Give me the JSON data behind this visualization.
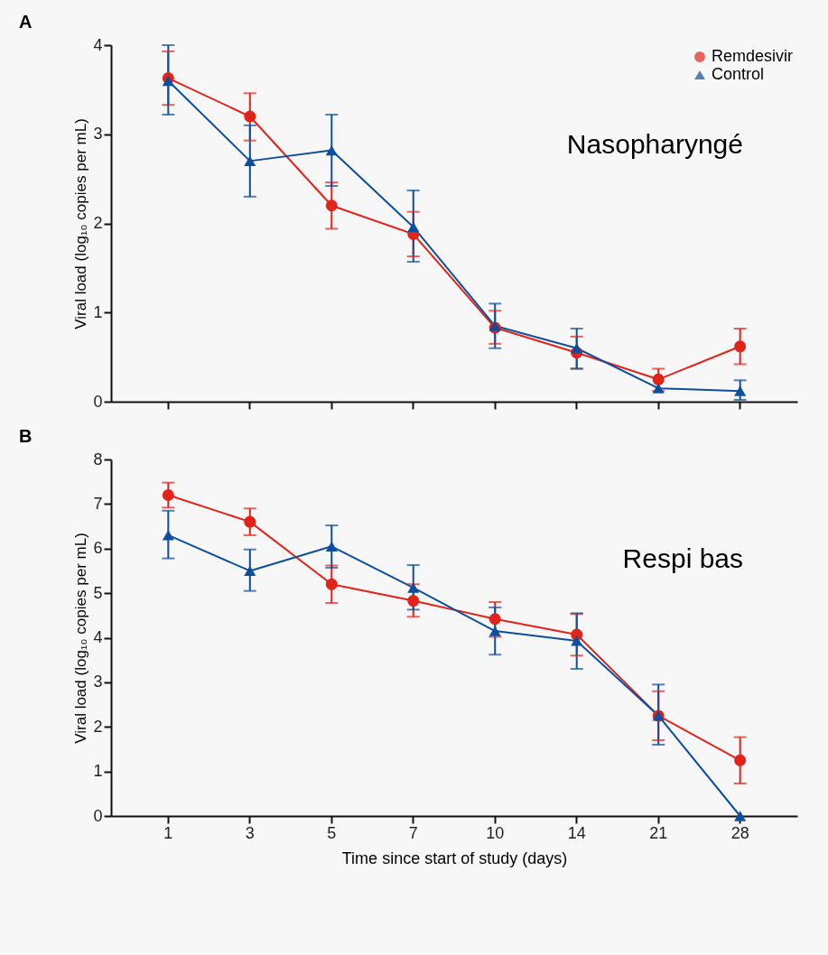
{
  "chart_data": [
    {
      "type": "line",
      "title": "A",
      "ylabel": "Viral load (log₁₀ copies per mL)",
      "categories": [
        "1",
        "3",
        "5",
        "7",
        "10",
        "14",
        "21",
        "28"
      ],
      "ylim": [
        0,
        4
      ],
      "yticks": [
        0,
        1,
        2,
        3,
        4
      ],
      "tick_labels": "y",
      "legend": "top right",
      "annotations": [
        "Nasopharyngé"
      ],
      "series": [
        {
          "name": "Remdesivir",
          "color": "#e2231a",
          "marker": "circle",
          "values": [
            3.63,
            3.2,
            2.2,
            1.88,
            0.83,
            0.55,
            0.25,
            0.62
          ],
          "errors": [
            [
              3.33,
              3.93
            ],
            [
              2.93,
              3.46
            ],
            [
              1.94,
              2.46
            ],
            [
              1.63,
              2.13
            ],
            [
              0.65,
              1.02
            ],
            [
              0.37,
              0.73
            ],
            [
              0.12,
              0.37
            ],
            [
              0.42,
              0.82
            ]
          ]
        },
        {
          "name": "Control",
          "color": "#0d4f9c",
          "marker": "triangle",
          "values": [
            3.6,
            2.7,
            2.82,
            1.96,
            0.85,
            0.6,
            0.15,
            0.12
          ],
          "errors": [
            [
              3.22,
              4.0
            ],
            [
              2.3,
              3.1
            ],
            [
              2.42,
              3.22
            ],
            [
              1.57,
              2.37
            ],
            [
              0.6,
              1.1
            ],
            [
              0.37,
              0.82
            ],
            null,
            [
              0.02,
              0.24
            ]
          ]
        }
      ]
    },
    {
      "type": "line",
      "title": "B",
      "ylabel": "Viral load (log₁₀ copies per mL)",
      "xlabel": "Time since start of study (days)",
      "categories": [
        "1",
        "3",
        "5",
        "7",
        "10",
        "14",
        "21",
        "28"
      ],
      "ylim": [
        0,
        8
      ],
      "yticks": [
        0,
        1,
        2,
        3,
        4,
        5,
        6,
        7,
        8
      ],
      "annotations": [
        "Respi bas"
      ],
      "series": [
        {
          "color": "#e2231a",
          "marker": "circle",
          "values": [
            7.2,
            6.6,
            5.2,
            4.83,
            4.42,
            4.07,
            2.25,
            1.25
          ],
          "errors": [
            [
              6.92,
              7.48
            ],
            [
              6.3,
              6.9
            ],
            [
              4.78,
              5.62
            ],
            [
              4.47,
              5.2
            ],
            [
              4.02,
              4.8
            ],
            [
              3.6,
              4.53
            ],
            [
              1.7,
              2.8
            ],
            [
              0.73,
              1.77
            ]
          ]
        },
        {
          "color": "#0d4f9c",
          "marker": "triangle",
          "values": [
            6.3,
            5.5,
            6.05,
            5.12,
            4.15,
            3.93,
            2.25,
            0
          ],
          "errors": [
            [
              5.78,
              6.85
            ],
            [
              5.05,
              5.98
            ],
            [
              5.57,
              6.52
            ],
            [
              4.63,
              5.63
            ],
            [
              3.62,
              4.68
            ],
            [
              3.3,
              4.55
            ],
            [
              1.6,
              2.95
            ],
            null
          ]
        }
      ]
    }
  ]
}
